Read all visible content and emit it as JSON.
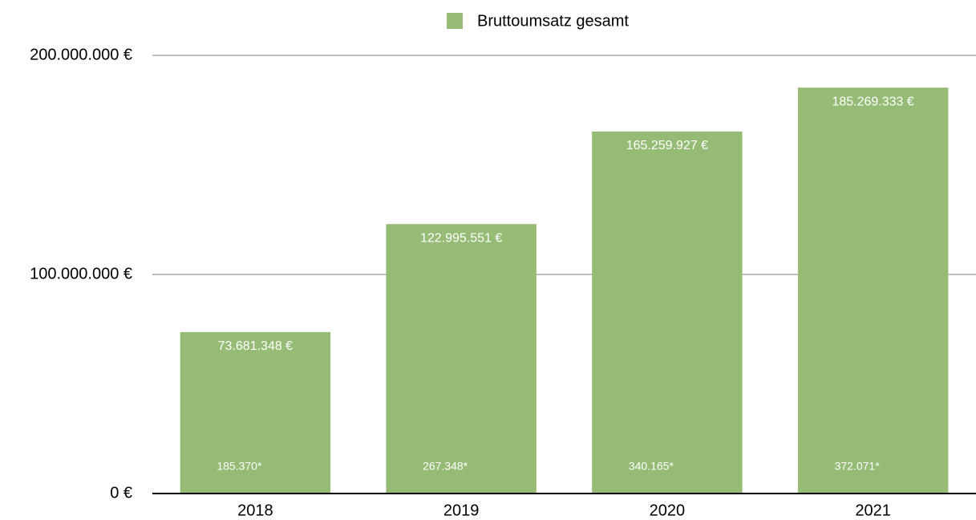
{
  "chart_data": {
    "type": "bar",
    "legend": "Bruttoumsatz gesamt",
    "categories": [
      "2018",
      "2019",
      "2020",
      "2021"
    ],
    "values": [
      73681348,
      122995551,
      165259927,
      185269333
    ],
    "value_labels": [
      "73.681.348 €",
      "122.995.551 €",
      "165.259.927 €",
      "185.269.333 €"
    ],
    "annotations": [
      "185.370*",
      "267.348*",
      "340.165*",
      "372.071*"
    ],
    "color": "#95bb74",
    "ylim": [
      0,
      200000000
    ],
    "yticks": [
      {
        "value": 0,
        "label": "0 €"
      },
      {
        "value": 100000000,
        "label": "100.000.000 €"
      },
      {
        "value": 200000000,
        "label": "200.000.000 €"
      }
    ],
    "grid": true
  }
}
